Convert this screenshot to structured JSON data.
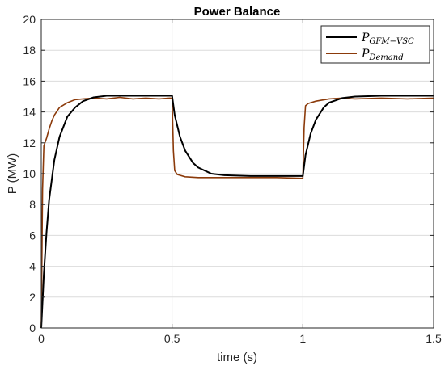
{
  "chart_data": {
    "type": "line",
    "title": "Power Balance",
    "xlabel": "time (s)",
    "ylabel": "P (MW)",
    "xlim": [
      0,
      1.5
    ],
    "ylim": [
      0,
      20
    ],
    "xticks": [
      0,
      0.5,
      1,
      1.5
    ],
    "xtick_labels": [
      "0",
      "0.5",
      "1",
      "1.5"
    ],
    "yticks": [
      0,
      2,
      4,
      6,
      8,
      10,
      12,
      14,
      16,
      18,
      20
    ],
    "ytick_labels": [
      "0",
      "2",
      "4",
      "6",
      "8",
      "10",
      "12",
      "14",
      "16",
      "18",
      "20"
    ],
    "grid": true,
    "legend_position": "top-right",
    "series": [
      {
        "name": "P_{GFM-VSC}",
        "label_main": "P",
        "label_sub": "GFM−VSC",
        "color": "#000000",
        "x": [
          0,
          0.01,
          0.02,
          0.03,
          0.05,
          0.07,
          0.1,
          0.13,
          0.16,
          0.2,
          0.25,
          0.3,
          0.4,
          0.49,
          0.5,
          0.51,
          0.53,
          0.55,
          0.58,
          0.6,
          0.65,
          0.7,
          0.8,
          0.9,
          0.99,
          1.0,
          1.01,
          1.03,
          1.05,
          1.08,
          1.1,
          1.15,
          1.2,
          1.3,
          1.4,
          1.5
        ],
        "y": [
          0,
          3.5,
          6.2,
          8.3,
          10.9,
          12.4,
          13.7,
          14.3,
          14.7,
          14.95,
          15.05,
          15.05,
          15.05,
          15.05,
          15.05,
          13.8,
          12.4,
          11.5,
          10.7,
          10.4,
          10.0,
          9.9,
          9.85,
          9.85,
          9.85,
          9.85,
          11.2,
          12.6,
          13.5,
          14.3,
          14.6,
          14.9,
          15.0,
          15.05,
          15.05,
          15.05
        ]
      },
      {
        "name": "P_{Demand}",
        "label_main": "P",
        "label_sub": "Demand",
        "color": "#8B3A0A",
        "x": [
          0,
          0.005,
          0.01,
          0.02,
          0.03,
          0.04,
          0.05,
          0.07,
          0.1,
          0.13,
          0.16,
          0.2,
          0.25,
          0.3,
          0.35,
          0.4,
          0.45,
          0.49,
          0.5,
          0.505,
          0.51,
          0.52,
          0.55,
          0.6,
          0.65,
          0.7,
          0.8,
          0.9,
          0.99,
          1.0,
          1.005,
          1.01,
          1.02,
          1.05,
          1.1,
          1.15,
          1.2,
          1.3,
          1.4,
          1.5
        ],
        "y": [
          0,
          9.0,
          11.8,
          12.3,
          12.9,
          13.4,
          13.8,
          14.3,
          14.6,
          14.8,
          14.85,
          14.9,
          14.85,
          14.95,
          14.85,
          14.9,
          14.85,
          14.9,
          14.9,
          11.5,
          10.2,
          9.95,
          9.8,
          9.75,
          9.75,
          9.75,
          9.75,
          9.75,
          9.7,
          9.7,
          13.0,
          14.4,
          14.55,
          14.7,
          14.85,
          14.9,
          14.85,
          14.9,
          14.85,
          14.9
        ]
      }
    ]
  }
}
